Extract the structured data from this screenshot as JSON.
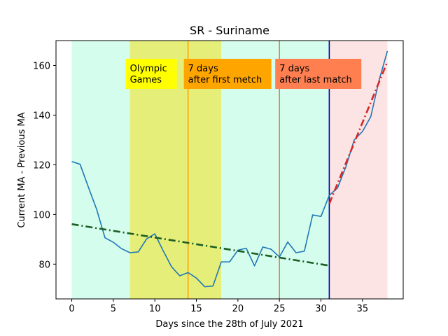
{
  "chart_data": {
    "type": "line",
    "title": "SR - Suriname",
    "xlabel": "Days since the 28th of July 2021",
    "ylabel": "Current MA - Previous MA",
    "xlim": [
      -1.9,
      39.9
    ],
    "ylim": [
      66,
      170
    ],
    "xticks": [
      0,
      5,
      10,
      15,
      20,
      25,
      30,
      35
    ],
    "yticks": [
      80,
      100,
      120,
      140,
      160
    ],
    "grid": false,
    "series": [
      {
        "role": "observed",
        "color": "#1f77b4",
        "x": [
          0,
          1,
          2,
          3,
          4,
          5,
          6,
          7,
          8,
          9,
          10,
          11,
          12,
          13,
          14,
          15,
          16,
          17,
          18,
          19,
          20,
          21,
          22,
          23,
          24,
          25,
          26,
          27,
          28,
          29,
          30,
          31,
          32,
          33,
          34,
          35,
          36,
          37,
          38
        ],
        "y": [
          121.3,
          120.2,
          111,
          102,
          90.6,
          88.8,
          86.2,
          84.6,
          84.9,
          90.1,
          92.2,
          85.4,
          79,
          75.3,
          76.6,
          74.4,
          70.9,
          71.2,
          80.9,
          80.9,
          85.6,
          86.4,
          79.3,
          86.9,
          86,
          82.9,
          88.9,
          84.6,
          85.2,
          99.8,
          99.2,
          107.7,
          110.7,
          119.2,
          130,
          133.4,
          139.4,
          154.1,
          165.8
        ]
      },
      {
        "role": "trend-before",
        "color": "#1b5e20",
        "style": "dash-dot",
        "x": [
          0,
          31
        ],
        "y": [
          96.1,
          79.4
        ]
      },
      {
        "role": "trend-after",
        "color": "#d62728",
        "style": "dash-dot",
        "x": [
          31,
          38
        ],
        "y": [
          104.3,
          161.5
        ]
      }
    ],
    "shaded_regions": [
      {
        "x": [
          0,
          7
        ],
        "color": "#d4fded"
      },
      {
        "x": [
          7,
          18
        ],
        "color": "#e6ee7a"
      },
      {
        "x": [
          18,
          31
        ],
        "color": "#d4fded"
      },
      {
        "x": [
          31,
          38
        ],
        "color": "#fde4e4"
      }
    ],
    "vertical_lines": [
      {
        "x": 14,
        "color": "#ffa500"
      },
      {
        "x": 25,
        "color": "#f07a4a"
      },
      {
        "x": 31,
        "color": "#0000aa"
      }
    ],
    "annotations": [
      {
        "lines": [
          "Olympic",
          "Games"
        ],
        "bg": "#ffff00"
      },
      {
        "lines": [
          "7 days",
          "after first metch"
        ],
        "bg": "#ffa500"
      },
      {
        "lines": [
          "7 days",
          "after last match"
        ],
        "bg": "#ff7f50"
      }
    ]
  }
}
